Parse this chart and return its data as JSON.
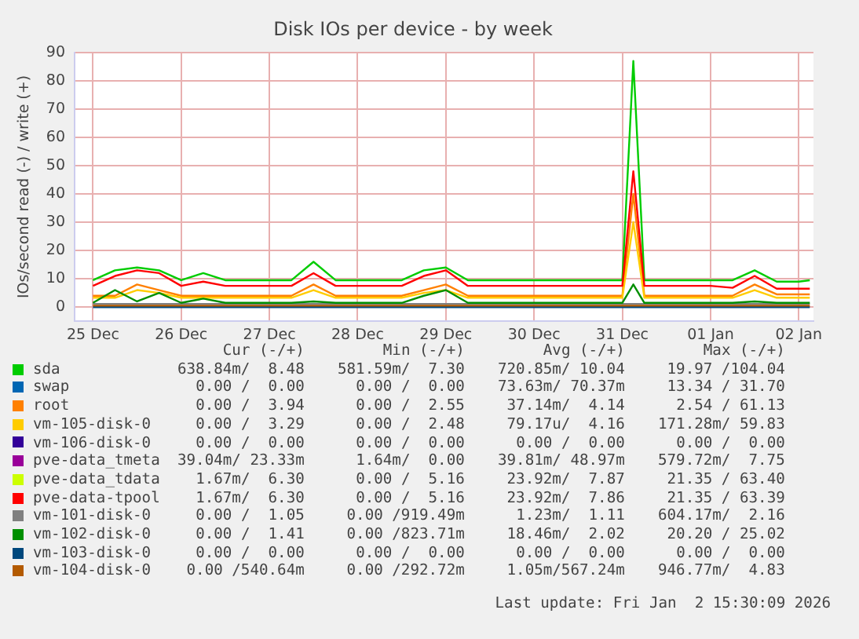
{
  "chart_data": {
    "type": "line",
    "title": "Disk IOs per device - by week",
    "ylabel": "IOs/second read (-) / write (+)",
    "x": [
      "2025-12-25T00:00",
      "2025-12-25T06:00",
      "2025-12-25T12:00",
      "2025-12-25T18:00",
      "2025-12-26T00:00",
      "2025-12-26T06:00",
      "2025-12-26T12:00",
      "2025-12-26T18:00",
      "2025-12-27T00:00",
      "2025-12-27T06:00",
      "2025-12-27T12:00",
      "2025-12-27T18:00",
      "2025-12-28T00:00",
      "2025-12-28T06:00",
      "2025-12-28T12:00",
      "2025-12-28T18:00",
      "2025-12-29T00:00",
      "2025-12-29T06:00",
      "2025-12-29T12:00",
      "2025-12-29T18:00",
      "2025-12-30T00:00",
      "2025-12-30T06:00",
      "2025-12-30T12:00",
      "2025-12-30T18:00",
      "2025-12-31T00:00",
      "2025-12-31T03:00",
      "2025-12-31T06:00",
      "2025-12-31T12:00",
      "2025-12-31T18:00",
      "2026-01-01T00:00",
      "2026-01-01T06:00",
      "2026-01-01T12:00",
      "2026-01-01T18:00",
      "2026-01-02T00:00",
      "2026-01-02T03:00"
    ],
    "xlim": [
      "2025-12-24T19:00",
      "2026-01-02T04:00"
    ],
    "xticks": [
      {
        "value": "2025-12-25",
        "label": "25 Dec"
      },
      {
        "value": "2025-12-26",
        "label": "26 Dec"
      },
      {
        "value": "2025-12-27",
        "label": "27 Dec"
      },
      {
        "value": "2025-12-28",
        "label": "28 Dec"
      },
      {
        "value": "2025-12-29",
        "label": "29 Dec"
      },
      {
        "value": "2025-12-30",
        "label": "30 Dec"
      },
      {
        "value": "2025-12-31",
        "label": "31 Dec"
      },
      {
        "value": "2026-01-01",
        "label": "01 Jan"
      },
      {
        "value": "2026-01-02",
        "label": "02 Jan"
      }
    ],
    "ylim": [
      -5,
      90
    ],
    "yticks": [
      0,
      10,
      20,
      30,
      40,
      50,
      60,
      70,
      80,
      90
    ],
    "grid": true,
    "legend": "bottom",
    "marker": "none",
    "line_style": "solid",
    "series": [
      {
        "name": "sda",
        "color": "#00cc00",
        "values": [
          9.5,
          13,
          14,
          13,
          9.5,
          12,
          9.5,
          9.5,
          9.5,
          9.5,
          16,
          9.5,
          9.5,
          9.5,
          9.5,
          13,
          14,
          9.5,
          9.5,
          9.5,
          9.5,
          9.5,
          9.5,
          9.5,
          9.5,
          87,
          9.5,
          9.5,
          9.5,
          9.5,
          9.5,
          13,
          9,
          9,
          9.5
        ]
      },
      {
        "name": "swap",
        "color": "#0066b3",
        "values": [
          null,
          null,
          null,
          null,
          null,
          null,
          null,
          null,
          null,
          null,
          null,
          null,
          null,
          null,
          null,
          null,
          null,
          null,
          null,
          null,
          null,
          null,
          null,
          null,
          null,
          null,
          null,
          null,
          null,
          null,
          null,
          null,
          null,
          null,
          null
        ]
      },
      {
        "name": "root",
        "color": "#ff8000",
        "values": [
          4,
          4,
          8,
          6,
          4,
          4,
          4,
          4,
          4,
          4,
          8,
          4,
          4,
          4,
          4,
          6,
          8,
          4,
          4,
          4,
          4,
          4,
          4,
          4,
          4,
          40,
          4,
          4,
          4,
          4,
          4,
          8,
          4.5,
          4.5,
          4.5
        ]
      },
      {
        "name": "vm-105-disk-0",
        "color": "#ffcc00",
        "values": [
          3.3,
          3.3,
          6,
          5,
          3.3,
          3.3,
          3.3,
          3.3,
          3.3,
          3.3,
          6,
          3.3,
          3.3,
          3.3,
          3.3,
          5,
          6,
          3.3,
          3.3,
          3.3,
          3.3,
          3.3,
          3.3,
          3.3,
          3.3,
          30,
          3.3,
          3.3,
          3.3,
          3.3,
          3.3,
          6,
          3.3,
          3.3,
          3.3
        ]
      },
      {
        "name": "vm-106-disk-0",
        "color": "#330099",
        "values": [
          null,
          null,
          null,
          null,
          null,
          null,
          null,
          null,
          null,
          null,
          null,
          null,
          null,
          null,
          null,
          null,
          null,
          null,
          null,
          null,
          null,
          null,
          null,
          null,
          null,
          null,
          null,
          null,
          null,
          null,
          null,
          null,
          null,
          null,
          null
        ]
      },
      {
        "name": "pve-data_tmeta",
        "color": "#990099",
        "values": [
          null,
          null,
          null,
          null,
          null,
          null,
          null,
          null,
          null,
          null,
          null,
          null,
          null,
          null,
          null,
          null,
          null,
          null,
          null,
          null,
          null,
          null,
          null,
          null,
          null,
          null,
          null,
          null,
          null,
          null,
          null,
          null,
          null,
          null,
          null
        ]
      },
      {
        "name": "pve-data_tdata",
        "color": "#ccff00",
        "values": [
          null,
          null,
          null,
          null,
          null,
          null,
          null,
          null,
          null,
          null,
          null,
          null,
          null,
          null,
          null,
          null,
          null,
          null,
          null,
          null,
          null,
          null,
          null,
          null,
          null,
          null,
          null,
          null,
          null,
          null,
          null,
          null,
          null,
          null,
          null
        ]
      },
      {
        "name": "pve-data-tpool",
        "color": "#ff0000",
        "values": [
          7.5,
          11,
          13,
          12,
          7.5,
          9,
          7.5,
          7.5,
          7.5,
          7.5,
          12,
          7.5,
          7.5,
          7.5,
          7.5,
          11,
          13,
          7.5,
          7.5,
          7.5,
          7.5,
          7.5,
          7.5,
          7.5,
          7.5,
          48,
          7.5,
          7.5,
          7.5,
          7.5,
          6.8,
          11,
          6.5,
          6.5,
          6.5
        ]
      },
      {
        "name": "vm-101-disk-0",
        "color": "#808080",
        "values": [
          1.1,
          1.1,
          1.1,
          1.1,
          1.1,
          1.1,
          1.1,
          1.1,
          1.1,
          1.1,
          1.1,
          1.1,
          1.1,
          1.1,
          1.1,
          1.1,
          1.1,
          1.1,
          1.1,
          1.1,
          1.1,
          1.1,
          1.1,
          1.1,
          1.1,
          1.1,
          1.1,
          1.1,
          1.1,
          1.1,
          1.1,
          1.1,
          1.1,
          1.1,
          1.1
        ]
      },
      {
        "name": "vm-102-disk-0",
        "color": "#008f00",
        "values": [
          1.5,
          6,
          2,
          5,
          1.5,
          3,
          1.5,
          1.5,
          1.5,
          1.5,
          2,
          1.5,
          1.5,
          1.5,
          1.5,
          4,
          6,
          1.5,
          1.5,
          1.5,
          1.5,
          1.5,
          1.5,
          1.5,
          1.5,
          8,
          1.5,
          1.5,
          1.5,
          1.5,
          1.5,
          2,
          1.5,
          1.5,
          1.5
        ]
      },
      {
        "name": "vm-103-disk-0",
        "color": "#00487d",
        "values": [
          0,
          0,
          0,
          0,
          0,
          0,
          0,
          0,
          0,
          0,
          0,
          0,
          0,
          0,
          0,
          0,
          0,
          0,
          0,
          0,
          0,
          0,
          0,
          0,
          0,
          0,
          0,
          0,
          0,
          0,
          0,
          0,
          0,
          0,
          0
        ]
      },
      {
        "name": "vm-104-disk-0",
        "color": "#b35a00",
        "values": [
          0.5,
          0.5,
          0.5,
          0.5,
          0.5,
          0.5,
          0.5,
          0.5,
          0.5,
          0.5,
          0.5,
          0.5,
          0.5,
          0.5,
          0.5,
          0.5,
          0.5,
          0.5,
          0.5,
          0.5,
          0.5,
          0.5,
          0.5,
          0.5,
          0.5,
          0.5,
          0.5,
          0.5,
          0.5,
          0.5,
          0.5,
          0.5,
          0.5,
          0.5,
          0.5
        ]
      }
    ],
    "annotations": [
      "Cur (-/+)",
      "Min (-/+)",
      "Avg (-/+)",
      "Max (-/+)",
      "638.84m/  8.48",
      "581.59m/  7.30",
      "720.85m/ 10.04",
      "19.97 /104.04",
      "0.00 /  0.00",
      "0.00 /  0.00",
      "73.63m/ 70.37m",
      "13.34 / 31.70",
      "0.00 /  3.94",
      "0.00 /  2.55",
      "37.14m/  4.14",
      "2.54 / 61.13",
      "0.00 /  3.29",
      "0.00 /  2.48",
      "79.17u/  4.16",
      "171.28m/ 59.83",
      "0.00 /  0.00",
      "0.00 /  0.00",
      "0.00 /  0.00",
      "0.00 /  0.00",
      "39.04m/ 23.33m",
      "1.64m/  0.00",
      "39.81m/ 48.97m",
      "579.72m/  7.75",
      "1.67m/  6.30",
      "0.00 /  5.16",
      "23.92m/  7.87",
      "21.35 / 63.40",
      "1.67m/  6.30",
      "0.00 /  5.16",
      "23.92m/  7.86",
      "21.35 / 63.39",
      "0.00 /  1.05",
      "0.00 /919.49m",
      "1.23m/  1.11",
      "604.17m/  2.16",
      "0.00 /  1.41",
      "0.00 /823.71m",
      "18.46m/  2.02",
      "20.20 / 25.02",
      "0.00 /  0.00",
      "0.00 /  0.00",
      "0.00 /  0.00",
      "0.00 /  0.00",
      "0.00 /540.64m",
      "0.00 /292.72m",
      "1.05m/567.24m",
      "946.77m/  4.83",
      "Last update: Fri Jan  2 15:30:09 2026"
    ]
  }
}
